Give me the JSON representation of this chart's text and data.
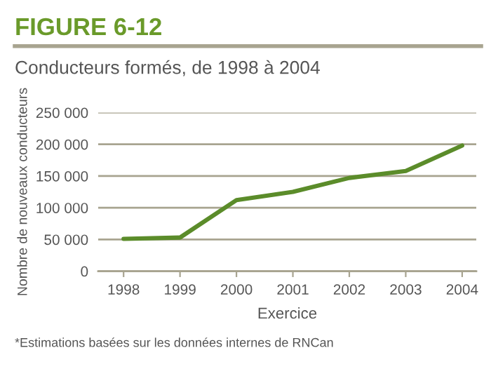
{
  "chart_data": {
    "type": "line",
    "title": "FIGURE 6-12",
    "subtitle": "Conducteurs formés, de 1998 à 2004",
    "xlabel": "Exercice",
    "ylabel": "Nombre de nouveaux conducteurs",
    "categories": [
      "1998",
      "1999",
      "2000",
      "2001",
      "2002",
      "2003",
      "2004"
    ],
    "series": [
      {
        "color": "#5b8c2a",
        "values": [
          51000,
          53000,
          112000,
          125000,
          147000,
          158000,
          198000
        ]
      }
    ],
    "ylim": [
      0,
      250000
    ],
    "yticks": [
      {
        "value": 0,
        "label": "0"
      },
      {
        "value": 50000,
        "label": "50 000"
      },
      {
        "value": 100000,
        "label": "100 000"
      },
      {
        "value": 150000,
        "label": "150 000"
      },
      {
        "value": 200000,
        "label": "200 000"
      },
      {
        "value": 250000,
        "label": "250 000"
      }
    ],
    "grid": "y",
    "marker": "none",
    "line_style": "solid",
    "annotations": [
      "*Estimations basées sur les données internes de RNCan"
    ]
  }
}
